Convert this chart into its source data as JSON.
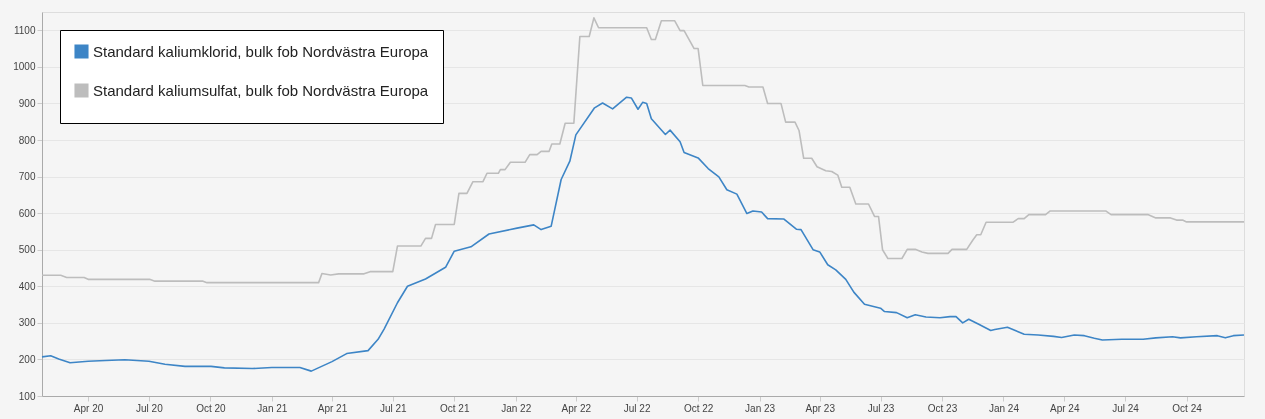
{
  "chart_data": {
    "type": "line",
    "xlim": [
      "2020-01-23",
      "2024-12-26"
    ],
    "xticks": [
      {
        "value": "2020-04-01",
        "label": "Apr 20"
      },
      {
        "value": "2020-07-01",
        "label": "Jul 20"
      },
      {
        "value": "2020-10-01",
        "label": "Oct 20"
      },
      {
        "value": "2021-01-01",
        "label": "Jan 21"
      },
      {
        "value": "2021-04-01",
        "label": "Apr 21"
      },
      {
        "value": "2021-07-01",
        "label": "Jul 21"
      },
      {
        "value": "2021-10-01",
        "label": "Oct 21"
      },
      {
        "value": "2022-01-01",
        "label": "Jan 22"
      },
      {
        "value": "2022-04-01",
        "label": "Apr 22"
      },
      {
        "value": "2022-07-01",
        "label": "Jul 22"
      },
      {
        "value": "2022-10-01",
        "label": "Oct 22"
      },
      {
        "value": "2023-01-01",
        "label": "Jan 23"
      },
      {
        "value": "2023-04-01",
        "label": "Apr 23"
      },
      {
        "value": "2023-07-01",
        "label": "Jul 23"
      },
      {
        "value": "2023-10-01",
        "label": "Oct 23"
      },
      {
        "value": "2024-01-01",
        "label": "Jan 24"
      },
      {
        "value": "2024-04-01",
        "label": "Apr 24"
      },
      {
        "value": "2024-07-01",
        "label": "Jul 24"
      },
      {
        "value": "2024-10-01",
        "label": "Oct 24"
      }
    ],
    "ylim": [
      100,
      1150
    ],
    "yticks": [
      100,
      200,
      300,
      400,
      500,
      600,
      700,
      800,
      900,
      1000,
      1100
    ],
    "grid": "y",
    "legend": "top left",
    "line_style": "solid",
    "series": [
      {
        "name": "Standard kaliumklorid, bulk fob Nordvästra Europa",
        "color": "#3d85c6",
        "x": [
          "2020-01-23",
          "2020-02-05",
          "2020-02-17",
          "2020-03-05",
          "2020-04-01",
          "2020-04-27",
          "2020-05-26",
          "2020-07-01",
          "2020-07-25",
          "2020-08-24",
          "2020-10-02",
          "2020-10-22",
          "2020-12-03",
          "2021-01-01",
          "2021-02-12",
          "2021-03-01",
          "2021-04-01",
          "2021-04-23",
          "2021-05-25",
          "2021-06-09",
          "2021-06-18",
          "2021-07-08",
          "2021-07-23",
          "2021-08-19",
          "2021-09-18",
          "2021-10-01",
          "2021-10-26",
          "2021-11-22",
          "2022-01-03",
          "2022-01-28",
          "2022-02-08",
          "2022-02-23",
          "2022-03-10",
          "2022-03-23",
          "2022-04-01",
          "2022-04-29",
          "2022-05-11",
          "2022-05-26",
          "2022-06-16",
          "2022-06-23",
          "2022-07-03",
          "2022-07-10",
          "2022-07-16",
          "2022-07-23",
          "2022-08-13",
          "2022-08-20",
          "2022-09-04",
          "2022-09-10",
          "2022-10-01",
          "2022-10-16",
          "2022-11-01",
          "2022-11-13",
          "2022-11-28",
          "2022-12-13",
          "2022-12-22",
          "2023-01-04",
          "2023-01-13",
          "2023-02-06",
          "2023-02-25",
          "2023-03-04",
          "2023-03-22",
          "2023-04-01",
          "2023-04-13",
          "2023-04-25",
          "2023-05-10",
          "2023-05-22",
          "2023-06-07",
          "2023-07-01",
          "2023-07-07",
          "2023-07-25",
          "2023-08-10",
          "2023-08-22",
          "2023-09-07",
          "2023-09-28",
          "2023-10-13",
          "2023-10-22",
          "2023-11-01",
          "2023-11-10",
          "2023-11-25",
          "2023-12-13",
          "2023-12-19",
          "2024-01-07",
          "2024-02-01",
          "2024-02-22",
          "2024-03-16",
          "2024-03-28",
          "2024-04-16",
          "2024-05-01",
          "2024-05-16",
          "2024-05-28",
          "2024-06-26",
          "2024-07-28",
          "2024-08-16",
          "2024-09-10",
          "2024-09-22",
          "2024-10-16",
          "2024-11-16",
          "2024-11-28",
          "2024-12-10",
          "2024-12-26"
        ],
        "values": [
          207,
          210,
          201,
          191,
          195,
          197,
          199,
          195,
          187,
          181,
          181,
          177,
          175,
          178,
          178,
          168,
          194,
          216,
          224,
          255,
          283,
          355,
          400,
          420,
          452,
          496,
          508,
          543,
          559,
          568,
          555,
          564,
          692,
          742,
          814,
          888,
          901,
          885,
          917,
          915,
          884,
          903,
          900,
          858,
          815,
          827,
          795,
          766,
          751,
          722,
          699,
          664,
          652,
          599,
          606,
          603,
          585,
          584,
          556,
          555,
          500,
          494,
          459,
          445,
          419,
          384,
          351,
          340,
          331,
          328,
          314,
          322,
          316,
          314,
          317,
          317,
          300,
          310,
          296,
          279,
          282,
          288,
          269,
          267,
          263,
          260,
          267,
          265,
          258,
          253,
          255,
          255,
          259,
          262,
          259,
          262,
          265,
          259,
          265,
          267
        ]
      },
      {
        "name": "Standard kaliumsulfat, bulk fob Nordvästra Europa",
        "color": "#bdbdbd",
        "x": [
          "2020-01-23",
          "2020-02-20",
          "2020-02-29",
          "2020-03-26",
          "2020-04-01",
          "2020-07-02",
          "2020-07-10",
          "2020-09-20",
          "2020-09-26",
          "2021-03-12",
          "2021-03-17",
          "2021-03-30",
          "2021-04-11",
          "2021-05-19",
          "2021-05-28",
          "2021-07-01",
          "2021-07-08",
          "2021-08-12",
          "2021-08-19",
          "2021-08-28",
          "2021-09-03",
          "2021-10-01",
          "2021-10-08",
          "2021-10-20",
          "2021-10-29",
          "2021-11-13",
          "2021-11-19",
          "2021-12-06",
          "2021-12-09",
          "2021-12-16",
          "2021-12-24",
          "2022-01-15",
          "2022-01-22",
          "2022-02-02",
          "2022-02-08",
          "2022-02-20",
          "2022-02-24",
          "2022-03-08",
          "2022-03-16",
          "2022-03-29",
          "2022-04-07",
          "2022-04-21",
          "2022-04-28",
          "2022-05-05",
          "2022-07-16",
          "2022-07-23",
          "2022-07-29",
          "2022-08-07",
          "2022-08-27",
          "2022-09-04",
          "2022-09-10",
          "2022-09-25",
          "2022-10-01",
          "2022-10-08",
          "2022-12-10",
          "2022-12-16",
          "2023-01-06",
          "2023-01-13",
          "2023-02-02",
          "2023-02-09",
          "2023-02-23",
          "2023-03-01",
          "2023-03-08",
          "2023-03-20",
          "2023-03-28",
          "2023-04-10",
          "2023-04-19",
          "2023-04-28",
          "2023-05-04",
          "2023-05-16",
          "2023-05-25",
          "2023-06-13",
          "2023-06-22",
          "2023-06-28",
          "2023-07-04",
          "2023-07-12",
          "2023-08-02",
          "2023-08-10",
          "2023-08-22",
          "2023-09-01",
          "2023-09-10",
          "2023-10-10",
          "2023-10-16",
          "2023-11-07",
          "2023-11-16",
          "2023-11-22",
          "2023-11-28",
          "2023-12-06",
          "2024-01-15",
          "2024-01-23",
          "2024-02-01",
          "2024-02-08",
          "2024-03-04",
          "2024-03-11",
          "2024-06-02",
          "2024-06-10",
          "2024-08-04",
          "2024-08-16",
          "2024-09-07",
          "2024-09-16",
          "2024-09-25",
          "2024-10-01",
          "2024-12-26"
        ],
        "values": [
          430,
          430,
          424,
          424,
          419,
          419,
          414,
          414,
          410,
          410,
          435,
          431,
          434,
          434,
          440,
          440,
          510,
          510,
          531,
          531,
          569,
          569,
          654,
          654,
          686,
          686,
          709,
          709,
          719,
          719,
          739,
          739,
          760,
          760,
          769,
          769,
          789,
          789,
          846,
          846,
          1083,
          1083,
          1134,
          1107,
          1107,
          1075,
          1075,
          1126,
          1126,
          1099,
          1099,
          1050,
          1050,
          949,
          949,
          945,
          945,
          900,
          900,
          849,
          849,
          826,
          750,
          750,
          727,
          716,
          714,
          704,
          671,
          671,
          625,
          625,
          591,
          591,
          500,
          476,
          476,
          501,
          501,
          494,
          490,
          490,
          501,
          501,
          526,
          541,
          541,
          575,
          575,
          585,
          585,
          596,
          596,
          606,
          606,
          596,
          596,
          587,
          587,
          581,
          581,
          576,
          576
        ]
      }
    ]
  }
}
